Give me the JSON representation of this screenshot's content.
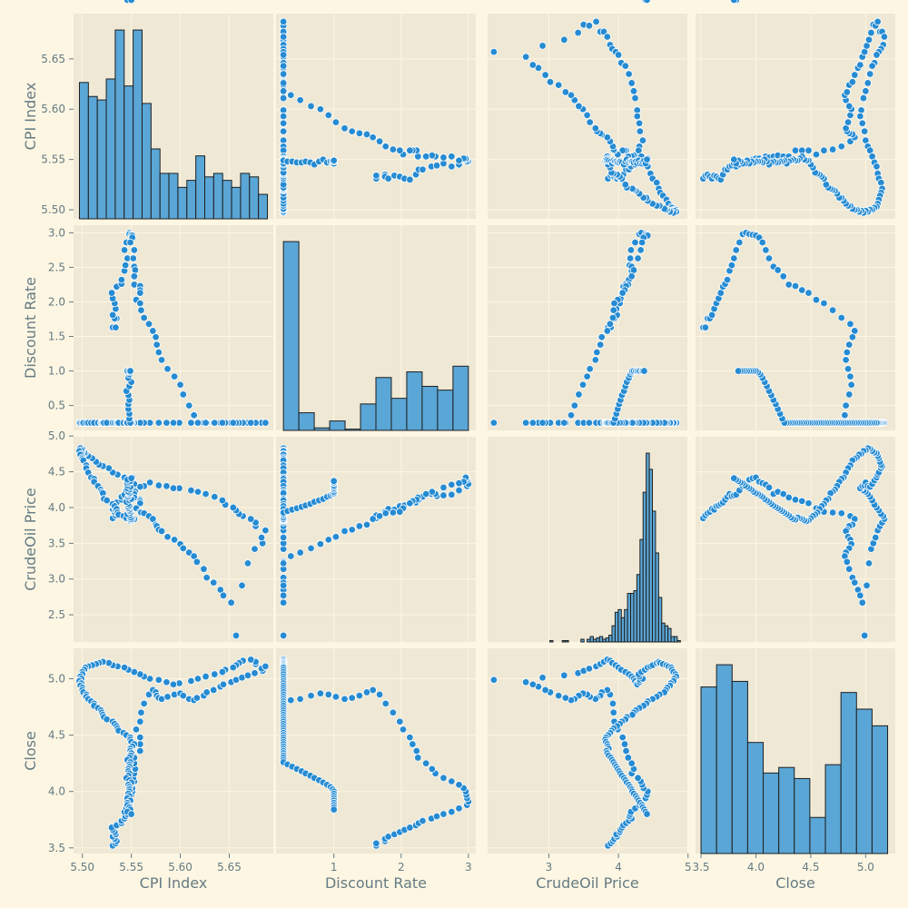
{
  "chart_data": {
    "type": "pairplot",
    "variables": [
      "CPI Index",
      "Discount Rate",
      "CrudeOil Price",
      "Close"
    ],
    "colors": {
      "background": "#fdf6e3",
      "panel": "#eee8d5",
      "grid": "#fdf6e3",
      "marker": "#268bd2",
      "marker_edge": "#ffffff",
      "bar": "#5aa6d6",
      "bar_edge": "#1f1f1f",
      "text": "#657b83"
    },
    "grid": true,
    "axes": [
      {
        "name": "CPI Index",
        "range": [
          5.491,
          5.695
        ],
        "ticks": [
          5.5,
          5.55,
          5.6,
          5.65
        ],
        "xtick_labels": [
          "5.50",
          "5.55",
          "5.60",
          "5.65"
        ],
        "ytick_labels": [
          "5.50",
          "5.55",
          "5.60",
          "5.65"
        ]
      },
      {
        "name": "Discount Rate",
        "range": [
          0.14,
          3.11
        ],
        "ticks": [
          1,
          2,
          3
        ],
        "xtick_labels": [
          "1",
          "2",
          "3"
        ],
        "ytick_labels": [
          "0.5",
          "1.0",
          "1.5",
          "2.0",
          "2.5",
          "3.0"
        ],
        "yticks": [
          0.5,
          1.0,
          1.5,
          2.0,
          2.5,
          3.0
        ]
      },
      {
        "name": "CrudeOil Price",
        "range": [
          2.12,
          4.99
        ],
        "ticks": [
          3,
          4,
          5
        ],
        "xtick_labels": [
          "3",
          "4",
          "5"
        ],
        "ytick_labels": [
          "2.5",
          "3.0",
          "3.5",
          "4.0",
          "4.5",
          "5.0"
        ],
        "yticks": [
          2.5,
          3.0,
          3.5,
          4.0,
          4.5,
          5.0
        ]
      },
      {
        "name": "Close",
        "range": [
          3.45,
          5.27
        ],
        "ticks": [
          3.5,
          4.0,
          4.5,
          5.0
        ],
        "xtick_labels": [
          "3.5",
          "4.0",
          "4.5",
          "5.0"
        ],
        "ytick_labels": [
          "3.5",
          "4.0",
          "4.5",
          "5.0"
        ]
      }
    ],
    "histograms": [
      {
        "variable": "CPI Index",
        "bin_range": [
          5.497,
          5.689
        ],
        "counts": [
          39,
          35,
          34,
          40,
          54,
          38,
          54,
          33,
          20,
          13,
          13,
          9,
          11,
          18,
          12,
          13,
          11,
          9,
          13,
          12,
          7
        ]
      },
      {
        "variable": "Discount Rate",
        "bin_range": [
          0.25,
          3.0
        ],
        "counts": [
          300,
          28,
          4,
          15,
          2,
          42,
          84,
          51,
          93,
          70,
          64,
          102
        ]
      },
      {
        "variable": "CrudeOil Price",
        "bin_range": [
          2.21,
          4.89
        ],
        "counts": [
          0,
          0,
          0,
          0,
          0,
          0,
          0,
          0,
          0,
          0,
          0,
          0,
          0,
          0,
          0,
          0,
          0,
          0,
          1,
          0,
          0,
          0,
          1,
          1,
          0,
          0,
          0,
          0,
          2,
          0,
          2,
          4,
          2,
          3,
          4,
          2,
          3,
          5,
          12,
          22,
          24,
          18,
          24,
          36,
          36,
          38,
          50,
          76,
          111,
          140,
          128,
          97,
          66,
          33,
          14,
          12,
          10,
          4,
          4,
          1
        ]
      },
      {
        "variable": "Close",
        "bin_range": [
          3.5,
          5.2
        ],
        "counts": [
          60,
          68,
          62,
          40,
          29,
          31,
          27,
          13,
          32,
          58,
          52,
          46
        ]
      }
    ],
    "series": [
      {
        "name": "CPI Index",
        "values": [
          5.531,
          5.534,
          5.535,
          5.533,
          5.531,
          5.534,
          5.533,
          5.531,
          5.53,
          5.535,
          5.54,
          5.54,
          5.543,
          5.544,
          5.546,
          5.543,
          5.545,
          5.548,
          5.548,
          5.548,
          5.55,
          5.551,
          5.551,
          5.549,
          5.553,
          5.552,
          5.553,
          5.554,
          5.553,
          5.553,
          5.559,
          5.559,
          5.559,
          5.555,
          5.559,
          5.56,
          5.563,
          5.568,
          5.572,
          5.575,
          5.576,
          5.578,
          5.581,
          5.587,
          5.594,
          5.6,
          5.603,
          5.609,
          5.614,
          5.617,
          5.624,
          5.627,
          5.634,
          5.641,
          5.644,
          5.652,
          5.657,
          5.663,
          5.669,
          5.676,
          5.684,
          5.683,
          5.687,
          5.677,
          5.677,
          5.672,
          5.664,
          5.66,
          5.657,
          5.654,
          5.646,
          5.643,
          5.635,
          5.626,
          5.618,
          5.611,
          5.599,
          5.593,
          5.586,
          5.578,
          5.569,
          5.563,
          5.559,
          5.553,
          5.547,
          5.543,
          5.536,
          5.531,
          5.527,
          5.521,
          5.517,
          5.514,
          5.51,
          5.506,
          5.503,
          5.502,
          5.5,
          5.5,
          5.498,
          5.499,
          5.497,
          5.499,
          5.498,
          5.5,
          5.5,
          5.501,
          5.504,
          5.504,
          5.506,
          5.509,
          5.512,
          5.512,
          5.516,
          5.519,
          5.52,
          5.521,
          5.522,
          5.525,
          5.531,
          5.533,
          5.535,
          5.536,
          5.537,
          5.542,
          5.545,
          5.549,
          5.549,
          5.55,
          5.553,
          5.551,
          5.549,
          5.549,
          5.55,
          5.549,
          5.548,
          5.546,
          5.549,
          5.548,
          5.548,
          5.547,
          5.547,
          5.548,
          5.547,
          5.545,
          5.548,
          5.55,
          5.547,
          5.548,
          5.548,
          5.548,
          5.547,
          5.548,
          5.546,
          5.549,
          5.546,
          5.546,
          5.548,
          5.549,
          5.546,
          5.55
        ]
      },
      {
        "name": "Discount Rate",
        "values": [
          1.63,
          1.63,
          1.76,
          1.76,
          1.81,
          1.9,
          1.98,
          2.05,
          2.13,
          2.22,
          2.26,
          2.32,
          2.45,
          2.53,
          2.63,
          2.75,
          2.86,
          2.98,
          3.0,
          2.98,
          2.97,
          2.96,
          2.93,
          2.86,
          2.75,
          2.63,
          2.51,
          2.46,
          2.37,
          2.25,
          2.23,
          2.17,
          2.13,
          2.03,
          1.98,
          1.88,
          1.77,
          1.68,
          1.58,
          1.49,
          1.38,
          1.27,
          1.16,
          1.03,
          0.92,
          0.8,
          0.66,
          0.5,
          0.36,
          0.25,
          0.25,
          0.25,
          0.25,
          0.25,
          0.25,
          0.25,
          0.25,
          0.25,
          0.25,
          0.25,
          0.25,
          0.25,
          0.25,
          0.25,
          0.25,
          0.25,
          0.25,
          0.25,
          0.25,
          0.25,
          0.25,
          0.25,
          0.25,
          0.25,
          0.25,
          0.25,
          0.25,
          0.25,
          0.25,
          0.25,
          0.25,
          0.25,
          0.25,
          0.25,
          0.25,
          0.25,
          0.25,
          0.25,
          0.25,
          0.25,
          0.25,
          0.25,
          0.25,
          0.25,
          0.25,
          0.25,
          0.25,
          0.25,
          0.25,
          0.25,
          0.25,
          0.25,
          0.25,
          0.25,
          0.25,
          0.25,
          0.25,
          0.25,
          0.25,
          0.25,
          0.25,
          0.25,
          0.25,
          0.25,
          0.25,
          0.25,
          0.25,
          0.25,
          0.25,
          0.25,
          0.25,
          0.25,
          0.25,
          0.25,
          0.25,
          0.25,
          0.25,
          0.25,
          0.25,
          0.25,
          0.25,
          0.25,
          0.25,
          0.25,
          0.25,
          0.25,
          0.25,
          0.31,
          0.38,
          0.45,
          0.52,
          0.58,
          0.65,
          0.71,
          0.78,
          0.84,
          0.9,
          0.95,
          0.98,
          1.0,
          1.0,
          1.0,
          1.0,
          1.0,
          1.0,
          1.0,
          1.0,
          1.0
        ]
      },
      {
        "name": "CrudeOil Price",
        "values": [
          3.85,
          3.89,
          3.92,
          3.94,
          3.98,
          3.97,
          4.02,
          4.03,
          4.05,
          4.07,
          4.11,
          4.15,
          4.19,
          4.16,
          4.17,
          4.18,
          4.24,
          4.3,
          4.33,
          4.39,
          4.41,
          4.42,
          4.36,
          4.34,
          4.32,
          4.28,
          4.19,
          4.22,
          4.19,
          4.14,
          4.11,
          4.09,
          4.06,
          3.99,
          3.94,
          3.93,
          3.92,
          3.88,
          3.84,
          3.76,
          3.74,
          3.69,
          3.67,
          3.59,
          3.55,
          3.49,
          3.43,
          3.37,
          3.32,
          3.24,
          3.14,
          3.02,
          2.95,
          2.85,
          2.77,
          2.67,
          2.21,
          2.91,
          3.22,
          3.42,
          3.5,
          3.58,
          3.68,
          3.74,
          3.79,
          3.84,
          3.88,
          3.91,
          3.96,
          4.0,
          4.04,
          4.1,
          4.15,
          4.19,
          4.22,
          4.24,
          4.27,
          4.27,
          4.3,
          4.31,
          4.35,
          4.3,
          4.29,
          4.33,
          4.38,
          4.42,
          4.46,
          4.49,
          4.55,
          4.58,
          4.6,
          4.64,
          4.69,
          4.72,
          4.76,
          4.77,
          4.79,
          4.82,
          4.83,
          4.8,
          4.79,
          4.75,
          4.74,
          4.7,
          4.68,
          4.66,
          4.59,
          4.55,
          4.49,
          4.42,
          4.4,
          4.36,
          4.3,
          4.25,
          4.22,
          4.2,
          4.12,
          4.1,
          4.05,
          4.02,
          3.98,
          3.93,
          3.9,
          3.88,
          3.85,
          3.82,
          3.81,
          3.82,
          3.84,
          3.85,
          3.86,
          3.83,
          3.84,
          3.86,
          3.89,
          3.91,
          3.93,
          3.95,
          3.97,
          3.99,
          4.01,
          4.03,
          4.05,
          4.08,
          4.1,
          4.12,
          4.15,
          4.17,
          4.19,
          4.2,
          4.22,
          4.25,
          4.27,
          4.29,
          4.31,
          4.34,
          4.35,
          4.37,
          4.39,
          4.41
        ]
      },
      {
        "name": "Close",
        "values": [
          3.52,
          3.54,
          3.56,
          3.58,
          3.6,
          3.62,
          3.64,
          3.66,
          3.68,
          3.7,
          3.72,
          3.74,
          3.76,
          3.78,
          3.8,
          3.82,
          3.85,
          3.88,
          3.91,
          3.94,
          3.97,
          4.0,
          4.03,
          4.06,
          4.09,
          4.12,
          4.16,
          4.2,
          4.25,
          4.3,
          4.36,
          4.42,
          4.48,
          4.55,
          4.62,
          4.7,
          4.78,
          4.86,
          4.9,
          4.88,
          4.85,
          4.83,
          4.82,
          4.84,
          4.86,
          4.87,
          4.85,
          4.82,
          4.81,
          4.83,
          4.85,
          4.88,
          4.9,
          4.93,
          4.95,
          4.97,
          4.99,
          5.01,
          5.03,
          5.05,
          5.07,
          5.09,
          5.11,
          5.13,
          5.15,
          5.17,
          5.16,
          5.14,
          5.12,
          5.1,
          5.08,
          5.06,
          5.04,
          5.02,
          5.0,
          4.98,
          4.96,
          4.95,
          4.97,
          4.99,
          5.0,
          5.02,
          5.04,
          5.06,
          5.08,
          5.1,
          5.11,
          5.12,
          5.14,
          5.15,
          5.14,
          5.13,
          5.12,
          5.11,
          5.1,
          5.08,
          5.06,
          5.04,
          5.02,
          5.0,
          4.98,
          4.96,
          4.94,
          4.92,
          4.9,
          4.88,
          4.86,
          4.84,
          4.82,
          4.8,
          4.78,
          4.76,
          4.74,
          4.72,
          4.7,
          4.68,
          4.66,
          4.64,
          4.62,
          4.6,
          4.58,
          4.56,
          4.54,
          4.52,
          4.5,
          4.48,
          4.46,
          4.44,
          4.42,
          4.4,
          4.38,
          4.36,
          4.34,
          4.32,
          4.3,
          4.28,
          4.26,
          4.24,
          4.22,
          4.2,
          4.18,
          4.16,
          4.14,
          4.12,
          4.1,
          4.08,
          4.06,
          4.04,
          4.02,
          4.0,
          3.98,
          3.96,
          3.94,
          3.92,
          3.9,
          3.88,
          3.86,
          3.84,
          3.82,
          3.8
        ]
      }
    ]
  }
}
